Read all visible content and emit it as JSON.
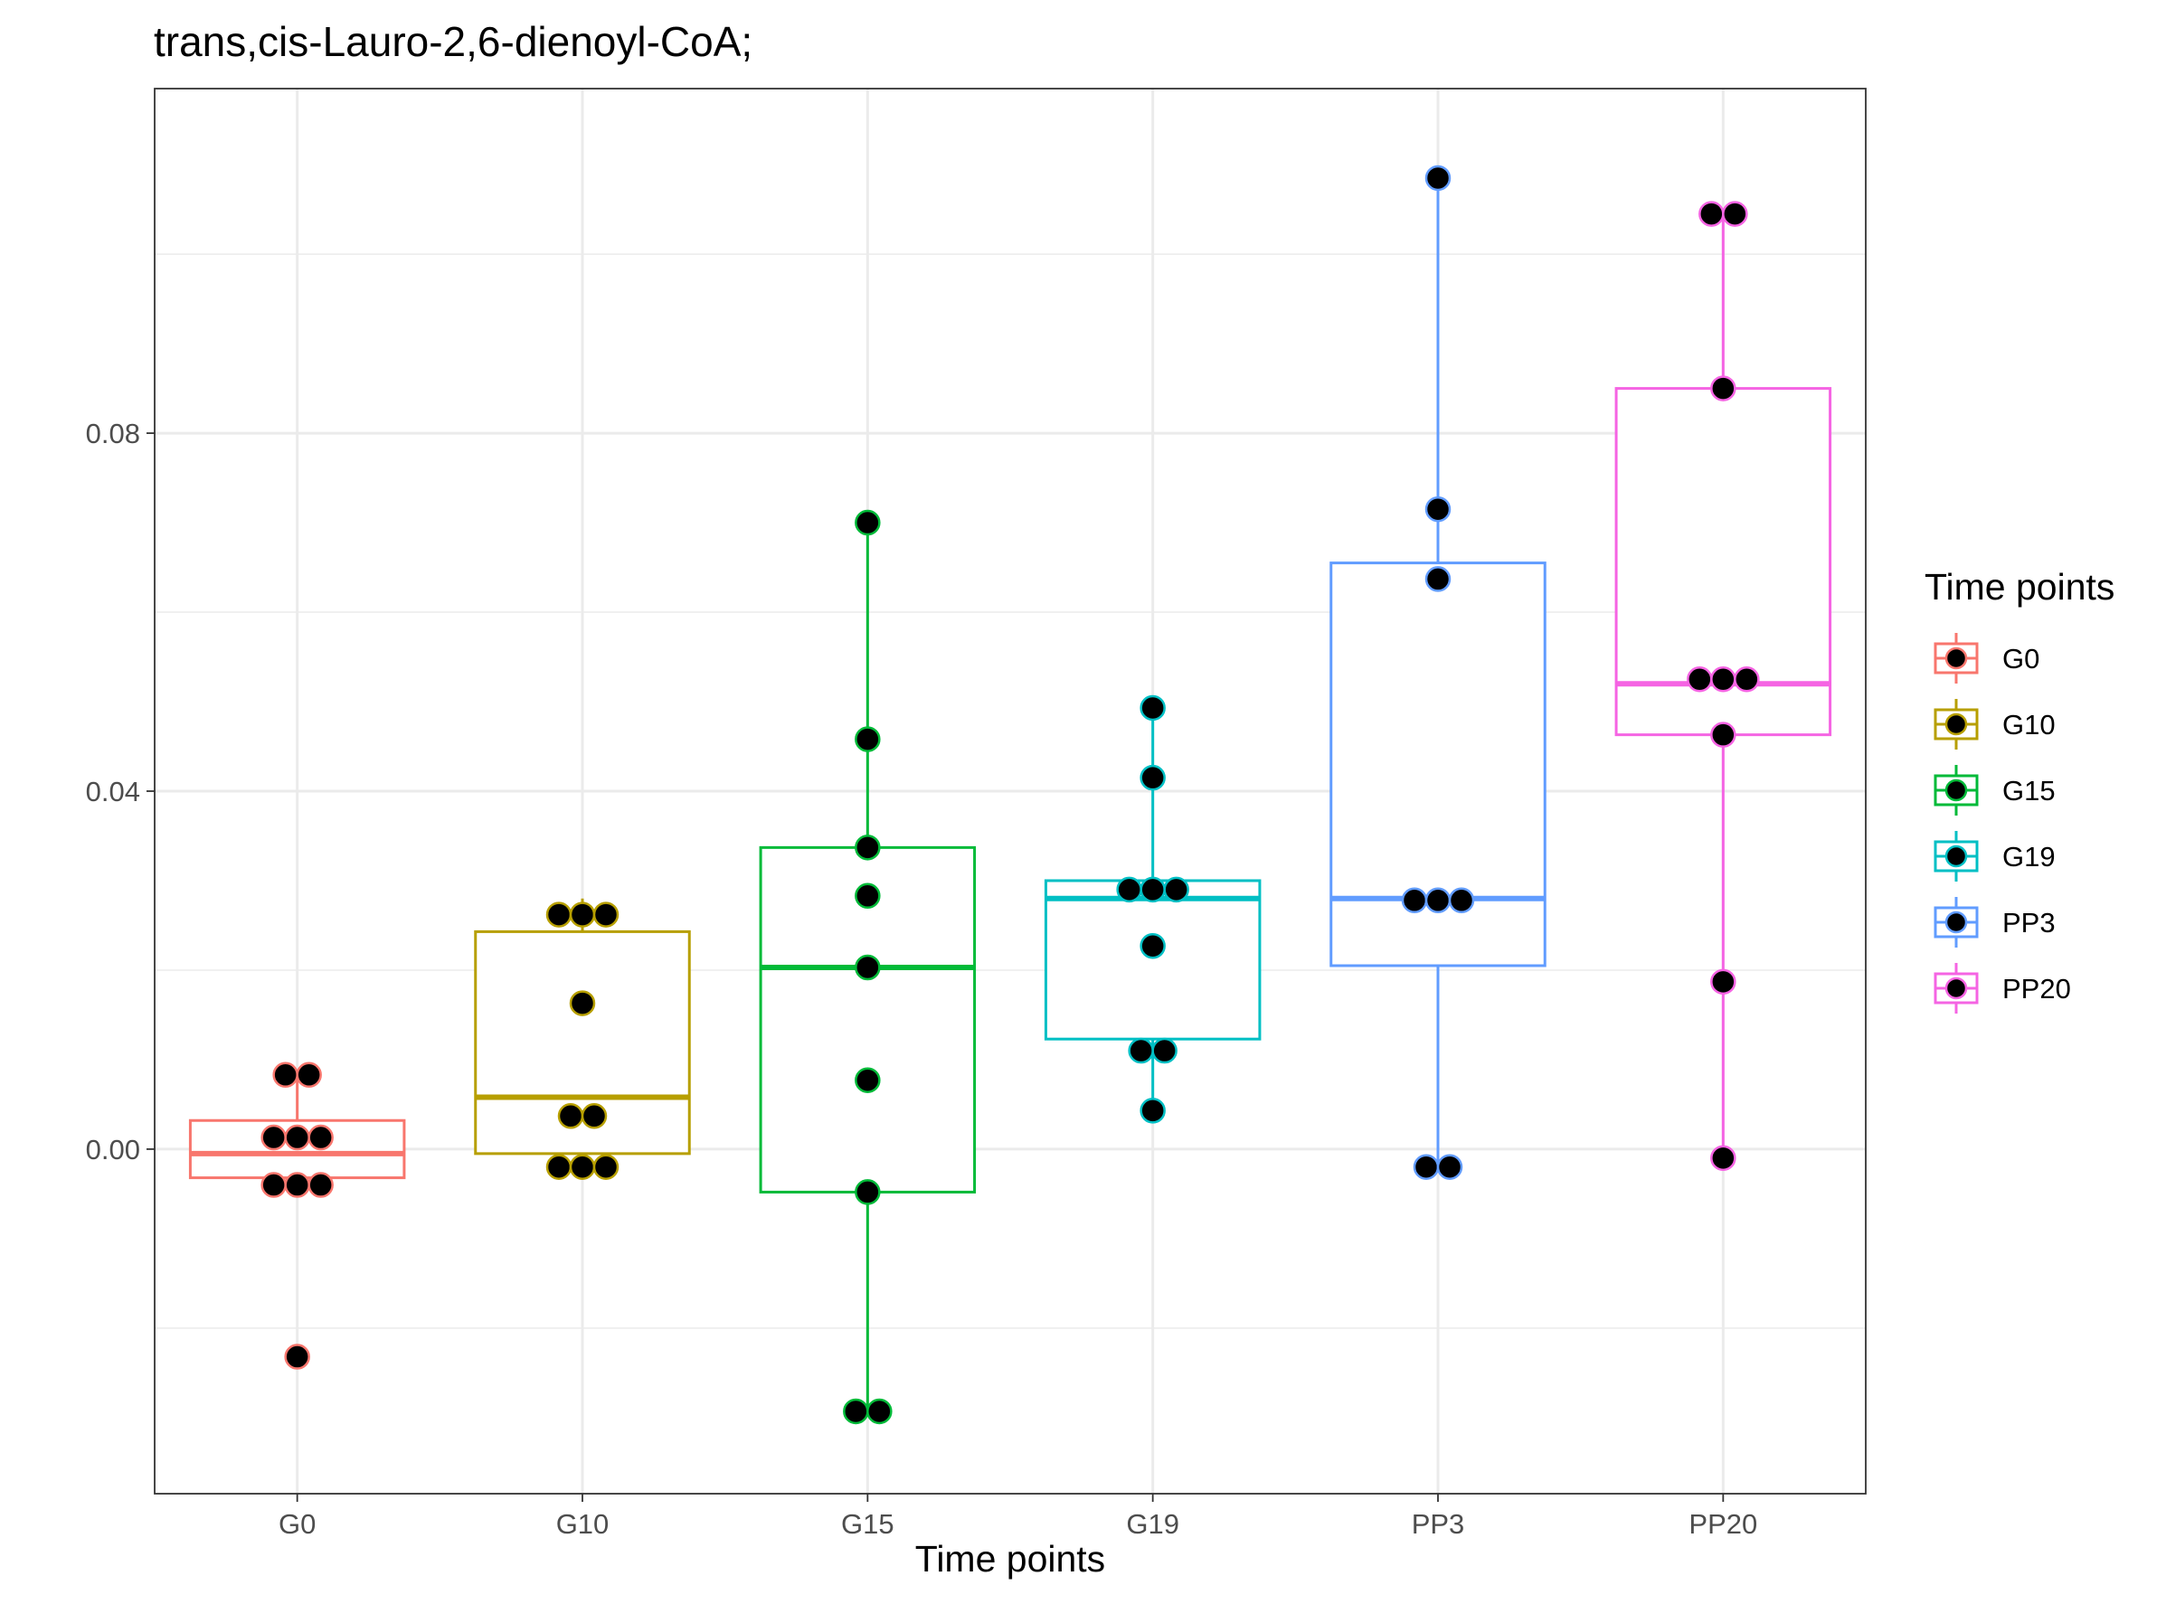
{
  "chart_data": {
    "type": "boxplot",
    "title": "trans,cis-Lauro-2,6-dienoyl-CoA;",
    "xlabel": "Time points",
    "ylabel": "",
    "ylim": [
      -0.0385,
      0.1185
    ],
    "y_ticks": [
      0.0,
      0.04,
      0.08
    ],
    "y_tick_labels": [
      "0.00",
      "0.04",
      "0.08"
    ],
    "grid": true,
    "legend": {
      "title": "Time points",
      "position": "right"
    },
    "categories": [
      "G0",
      "G10",
      "G15",
      "G19",
      "PP3",
      "PP20"
    ],
    "colors": [
      "#F8766D",
      "#B79F00",
      "#00BA38",
      "#00BFC4",
      "#619CFF",
      "#F564E3"
    ],
    "point_fill": "#000000",
    "series": [
      {
        "name": "G0",
        "q1": -0.0032,
        "median": -0.0005,
        "q3": 0.0032,
        "whisker_low": -0.004,
        "whisker_high": 0.0083,
        "points": [
          -0.0232,
          -0.004,
          -0.004,
          -0.004,
          0.0013,
          0.0013,
          0.0013,
          0.0083,
          0.0083
        ]
      },
      {
        "name": "G10",
        "q1": -0.0005,
        "median": 0.0058,
        "q3": 0.0243,
        "whisker_low": -0.002,
        "whisker_high": 0.028,
        "points": [
          -0.002,
          -0.002,
          -0.002,
          0.0037,
          0.0037,
          0.0163,
          0.0262,
          0.0262,
          0.0262
        ]
      },
      {
        "name": "G15",
        "q1": -0.0048,
        "median": 0.0203,
        "q3": 0.0337,
        "whisker_low": -0.0293,
        "whisker_high": 0.07,
        "points": [
          -0.0293,
          -0.0293,
          -0.0048,
          0.0077,
          0.0203,
          0.0283,
          0.0337,
          0.0458,
          0.07
        ]
      },
      {
        "name": "G19",
        "q1": 0.0123,
        "median": 0.028,
        "q3": 0.03,
        "whisker_low": 0.0043,
        "whisker_high": 0.0493,
        "points": [
          0.0043,
          0.011,
          0.011,
          0.0227,
          0.029,
          0.029,
          0.029,
          0.0415,
          0.0493
        ]
      },
      {
        "name": "PP3",
        "q1": 0.0205,
        "median": 0.028,
        "q3": 0.0655,
        "whisker_low": -0.002,
        "whisker_high": 0.1085,
        "points": [
          -0.002,
          -0.002,
          0.0278,
          0.0278,
          0.0278,
          0.0637,
          0.0715,
          0.1085
        ]
      },
      {
        "name": "PP20",
        "q1": 0.0463,
        "median": 0.052,
        "q3": 0.085,
        "whisker_low": -0.001,
        "whisker_high": 0.1045,
        "points": [
          -0.001,
          0.0187,
          0.0463,
          0.0525,
          0.0525,
          0.0525,
          0.085,
          0.1045,
          0.1045
        ]
      }
    ]
  }
}
